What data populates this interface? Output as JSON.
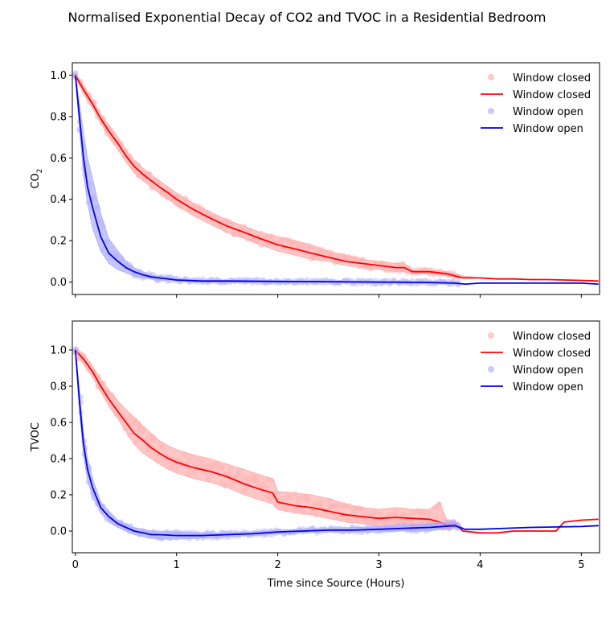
{
  "figure": {
    "title": "Normalised Exponential Decay of CO2 and TVOC in a Residential Bedroom"
  },
  "colors": {
    "closed_line": "#ff0000",
    "closed_fill": "#ff8080",
    "closed_point": "#ffb3b3",
    "open_line": "#0000e6",
    "open_fill": "#8080ff",
    "open_point": "#b3b3ff"
  },
  "chart_data": [
    {
      "type": "line",
      "ylabel": "CO",
      "ylabel_subscript": "2",
      "xlabel": "",
      "xlim": [
        -0.03,
        5.18
      ],
      "ylim": [
        -0.06,
        1.06
      ],
      "x_ticks": [
        0,
        1,
        2,
        3,
        4,
        5
      ],
      "x_tick_labels_shown": false,
      "y_ticks": [
        0.0,
        0.2,
        0.4,
        0.6,
        0.8,
        1.0
      ],
      "y_tick_labels": [
        "0.0",
        "0.2",
        "0.4",
        "0.6",
        "0.8",
        "1.0"
      ],
      "legend_position": "top-right",
      "legend": [
        "Window closed",
        "Window closed",
        "Window open",
        "Window open"
      ],
      "series": [
        {
          "name": "Window closed",
          "kind": "mean-line-with-band-and-scatter",
          "x": [
            0,
            0.08,
            0.17,
            0.25,
            0.33,
            0.42,
            0.5,
            0.58,
            0.67,
            0.75,
            0.83,
            0.92,
            1.0,
            1.17,
            1.33,
            1.5,
            1.67,
            1.83,
            2.0,
            2.17,
            2.33,
            2.5,
            2.67,
            2.83,
            3.0,
            3.17,
            3.25,
            3.33,
            3.5,
            3.67,
            3.75,
            3.83,
            4.0,
            4.17,
            4.33,
            4.5,
            4.67,
            4.83,
            5.0,
            5.17
          ],
          "y": [
            1.0,
            0.93,
            0.86,
            0.79,
            0.73,
            0.67,
            0.61,
            0.56,
            0.52,
            0.49,
            0.46,
            0.43,
            0.4,
            0.35,
            0.31,
            0.27,
            0.24,
            0.21,
            0.18,
            0.16,
            0.14,
            0.12,
            0.1,
            0.09,
            0.08,
            0.07,
            0.07,
            0.05,
            0.05,
            0.04,
            0.03,
            0.02,
            0.02,
            0.015,
            0.015,
            0.012,
            0.012,
            0.01,
            0.008,
            0.005
          ],
          "lower": [
            0.99,
            0.91,
            0.84,
            0.77,
            0.7,
            0.64,
            0.58,
            0.53,
            0.49,
            0.46,
            0.43,
            0.4,
            0.37,
            0.32,
            0.28,
            0.24,
            0.21,
            0.18,
            0.15,
            0.13,
            0.11,
            0.1,
            0.08,
            0.07,
            0.06,
            0.05,
            0.05,
            0.04,
            0.04,
            0.03,
            0.02,
            0.02,
            0.02,
            0.015,
            0.015,
            0.012,
            0.012,
            0.01,
            0.008,
            0.005
          ],
          "upper": [
            1.01,
            0.95,
            0.88,
            0.81,
            0.76,
            0.7,
            0.64,
            0.59,
            0.55,
            0.52,
            0.49,
            0.46,
            0.43,
            0.38,
            0.34,
            0.3,
            0.27,
            0.24,
            0.22,
            0.2,
            0.18,
            0.15,
            0.13,
            0.11,
            0.1,
            0.09,
            0.09,
            0.06,
            0.06,
            0.05,
            0.04,
            0.03,
            0.02,
            0.015,
            0.015,
            0.012,
            0.012,
            0.01,
            0.008,
            0.005
          ]
        },
        {
          "name": "Window open",
          "kind": "mean-line-with-band-and-scatter",
          "x": [
            0,
            0.04,
            0.08,
            0.12,
            0.17,
            0.25,
            0.33,
            0.42,
            0.5,
            0.58,
            0.67,
            0.75,
            0.83,
            1.0,
            1.25,
            1.5,
            2.0,
            2.5,
            3.0,
            3.5,
            3.75,
            3.85,
            4.0,
            4.5,
            5.0,
            5.17
          ],
          "y": [
            1.0,
            0.8,
            0.6,
            0.46,
            0.36,
            0.22,
            0.14,
            0.1,
            0.07,
            0.05,
            0.035,
            0.025,
            0.02,
            0.01,
            0.005,
            0.005,
            0.003,
            0.002,
            0.0,
            -0.002,
            -0.005,
            -0.01,
            -0.005,
            -0.005,
            -0.005,
            -0.01
          ],
          "lower": [
            0.99,
            0.74,
            0.52,
            0.38,
            0.26,
            0.15,
            0.09,
            0.06,
            0.045,
            0.03,
            0.02,
            0.015,
            0.01,
            0.005,
            0.0,
            0.0,
            0.0,
            0.0,
            -0.005,
            -0.006,
            -0.008,
            -0.01,
            -0.005,
            -0.005,
            -0.005,
            -0.01
          ],
          "upper": [
            1.01,
            0.86,
            0.72,
            0.6,
            0.5,
            0.33,
            0.21,
            0.15,
            0.1,
            0.07,
            0.05,
            0.035,
            0.03,
            0.015,
            0.01,
            0.01,
            0.006,
            0.005,
            0.005,
            0.002,
            0.0,
            -0.01,
            -0.005,
            -0.005,
            -0.005,
            -0.01
          ]
        }
      ]
    },
    {
      "type": "line",
      "ylabel": "TVOC",
      "xlabel": "Time since Source (Hours)",
      "xlim": [
        -0.03,
        5.18
      ],
      "ylim": [
        -0.12,
        1.16
      ],
      "x_ticks": [
        0,
        1,
        2,
        3,
        4,
        5
      ],
      "x_tick_labels": [
        "0",
        "1",
        "2",
        "3",
        "4",
        "5"
      ],
      "y_ticks": [
        0.0,
        0.2,
        0.4,
        0.6,
        0.8,
        1.0
      ],
      "y_tick_labels": [
        "0.0",
        "0.2",
        "0.4",
        "0.6",
        "0.8",
        "1.0"
      ],
      "legend_position": "top-right",
      "legend": [
        "Window closed",
        "Window closed",
        "Window open",
        "Window open"
      ],
      "series": [
        {
          "name": "Window closed",
          "kind": "mean-line-with-band-and-scatter",
          "x": [
            0,
            0.08,
            0.17,
            0.25,
            0.33,
            0.42,
            0.5,
            0.58,
            0.67,
            0.75,
            0.83,
            0.92,
            1.0,
            1.17,
            1.33,
            1.5,
            1.67,
            1.83,
            1.95,
            2.0,
            2.17,
            2.33,
            2.5,
            2.67,
            2.83,
            3.0,
            3.17,
            3.33,
            3.5,
            3.6,
            3.67,
            3.75,
            3.83,
            4.0,
            4.17,
            4.33,
            4.5,
            4.67,
            4.75,
            4.83,
            5.0,
            5.17
          ],
          "y": [
            1.0,
            0.95,
            0.88,
            0.8,
            0.73,
            0.66,
            0.6,
            0.54,
            0.5,
            0.46,
            0.43,
            0.4,
            0.38,
            0.35,
            0.33,
            0.3,
            0.26,
            0.23,
            0.21,
            0.16,
            0.14,
            0.13,
            0.11,
            0.09,
            0.08,
            0.07,
            0.075,
            0.07,
            0.065,
            0.05,
            0.03,
            0.04,
            0.0,
            -0.01,
            -0.01,
            0.0,
            0.0,
            0.0,
            0.0,
            0.05,
            0.06,
            0.065
          ],
          "lower": [
            0.99,
            0.92,
            0.85,
            0.77,
            0.69,
            0.62,
            0.55,
            0.48,
            0.43,
            0.4,
            0.37,
            0.34,
            0.32,
            0.29,
            0.27,
            0.24,
            0.2,
            0.17,
            0.15,
            0.12,
            0.1,
            0.09,
            0.07,
            0.05,
            0.04,
            0.03,
            0.03,
            0.03,
            0.02,
            0.01,
            0.01,
            0.02,
            0.0,
            -0.01,
            -0.01,
            0.0,
            0.0,
            0.0,
            0.0,
            0.05,
            0.06,
            0.065
          ],
          "upper": [
            1.01,
            0.98,
            0.91,
            0.84,
            0.78,
            0.72,
            0.67,
            0.63,
            0.58,
            0.54,
            0.5,
            0.47,
            0.45,
            0.42,
            0.4,
            0.37,
            0.34,
            0.31,
            0.29,
            0.22,
            0.21,
            0.2,
            0.18,
            0.15,
            0.13,
            0.12,
            0.13,
            0.12,
            0.12,
            0.16,
            0.06,
            0.06,
            0.0,
            -0.01,
            -0.01,
            0.0,
            0.0,
            0.0,
            0.0,
            0.05,
            0.06,
            0.065
          ]
        },
        {
          "name": "Window open",
          "kind": "mean-line-with-band-and-scatter",
          "x": [
            0,
            0.04,
            0.08,
            0.12,
            0.17,
            0.25,
            0.33,
            0.42,
            0.5,
            0.58,
            0.67,
            0.75,
            0.83,
            1.0,
            1.25,
            1.5,
            1.75,
            2.0,
            2.25,
            2.5,
            2.75,
            3.0,
            3.25,
            3.5,
            3.75,
            3.85,
            4.0,
            4.25,
            4.5,
            5.0,
            5.17
          ],
          "y": [
            1.0,
            0.72,
            0.48,
            0.34,
            0.24,
            0.13,
            0.08,
            0.04,
            0.02,
            0.0,
            -0.01,
            -0.02,
            -0.02,
            -0.025,
            -0.025,
            -0.02,
            -0.015,
            -0.005,
            0.0,
            0.005,
            0.005,
            0.01,
            0.015,
            0.02,
            0.03,
            0.01,
            0.01,
            0.015,
            0.02,
            0.025,
            0.03
          ],
          "lower": [
            0.99,
            0.66,
            0.42,
            0.28,
            0.19,
            0.1,
            0.05,
            0.02,
            0.0,
            -0.02,
            -0.03,
            -0.04,
            -0.045,
            -0.045,
            -0.04,
            -0.03,
            -0.025,
            -0.015,
            -0.01,
            -0.005,
            -0.005,
            -0.005,
            0.0,
            0.0,
            0.02,
            0.01,
            0.01,
            0.015,
            0.02,
            0.025,
            0.03
          ],
          "upper": [
            1.01,
            0.78,
            0.54,
            0.4,
            0.29,
            0.16,
            0.11,
            0.06,
            0.04,
            0.02,
            0.01,
            0.0,
            0.0,
            -0.005,
            -0.01,
            -0.01,
            -0.005,
            0.005,
            0.01,
            0.015,
            0.02,
            0.025,
            0.03,
            0.04,
            0.05,
            0.01,
            0.01,
            0.015,
            0.02,
            0.025,
            0.03
          ]
        }
      ]
    }
  ]
}
